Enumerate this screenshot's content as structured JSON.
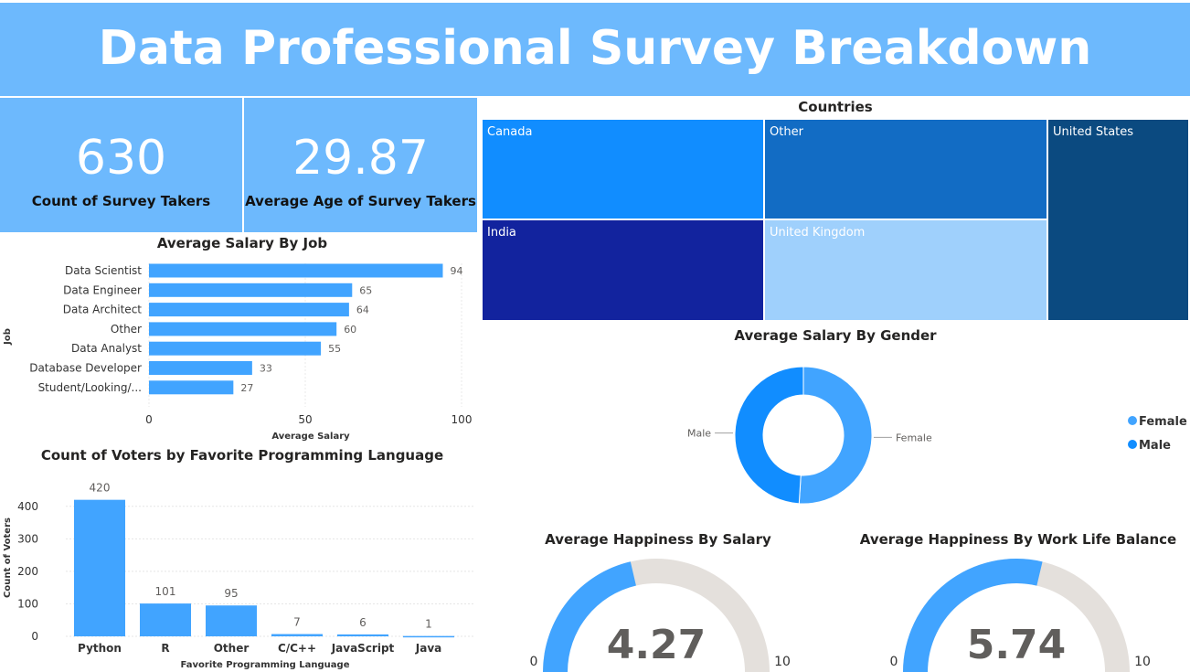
{
  "header": {
    "title": "Data Professional Survey Breakdown"
  },
  "kpis": {
    "count": {
      "value": "630",
      "label": "Count of Survey Takers"
    },
    "age": {
      "value": "29.87",
      "label": "Average Age of Survey Takers"
    }
  },
  "colors": {
    "header_bg": "#6db9fd",
    "bar_blue": "#41a4ff",
    "gauge_track": "#e4e0dc",
    "female": "#41a4ff",
    "male": "#118dff"
  },
  "countries": {
    "title": "Countries",
    "cells": [
      {
        "name": "Canada",
        "color": "#118dff"
      },
      {
        "name": "Other",
        "color": "#126cc4"
      },
      {
        "name": "United States",
        "color": "#0b4a80"
      },
      {
        "name": "India",
        "color": "#12239e"
      },
      {
        "name": "United Kingdom",
        "color": "#9fd0fc"
      }
    ]
  },
  "chart_data": [
    {
      "type": "bar",
      "orientation": "horizontal",
      "title": "Average Salary By Job",
      "categories": [
        "Data Scientist",
        "Data Engineer",
        "Data Architect",
        "Other",
        "Data Analyst",
        "Database Developer",
        "Student/Looking/..."
      ],
      "values": [
        94,
        65,
        64,
        60,
        55,
        33,
        27
      ],
      "xlabel": "Average Salary",
      "ylabel": "Job",
      "xlim": [
        0,
        100
      ],
      "ticks": [
        "0",
        "50",
        "100"
      ]
    },
    {
      "type": "bar",
      "title": "Count of Voters by Favorite Programming Language",
      "categories": [
        "Python",
        "R",
        "Other",
        "C/C++",
        "JavaScript",
        "Java"
      ],
      "values": [
        420,
        101,
        95,
        7,
        6,
        1
      ],
      "xlabel": "Favorite Programming Language",
      "ylabel": "Count of Voters",
      "ylim": [
        0,
        450
      ],
      "ticks": [
        "0",
        "100",
        "200",
        "300",
        "400"
      ]
    },
    {
      "type": "pie",
      "subtype": "donut",
      "title": "Average Salary By Gender",
      "labels": [
        "Female",
        "Male"
      ],
      "values": [
        51,
        49
      ],
      "legend": [
        "Female",
        "Male"
      ]
    },
    {
      "type": "gauge",
      "title": "Average Happiness By Salary",
      "value": 4.27,
      "value_label": "4.27",
      "min": 0,
      "max": 10,
      "min_label": "0",
      "max_label": "10"
    },
    {
      "type": "gauge",
      "title": "Average Happiness By Work Life Balance",
      "value": 5.74,
      "value_label": "5.74",
      "min": 0,
      "max": 10,
      "min_label": "0",
      "max_label": "10"
    }
  ]
}
